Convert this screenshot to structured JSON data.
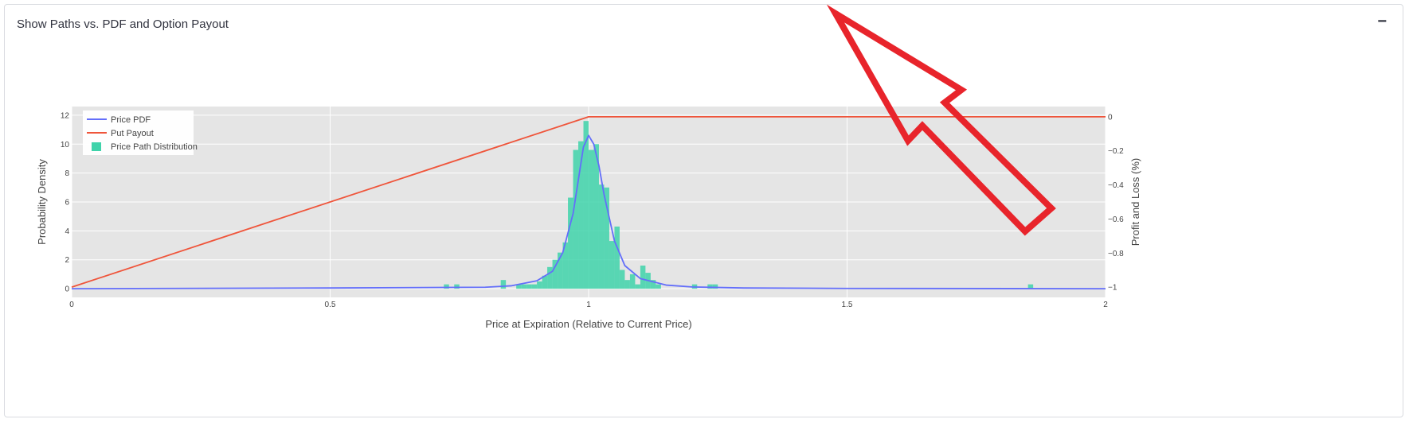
{
  "expander": {
    "title": "Show Paths vs. PDF and Option Payout",
    "collapse_icon": "−"
  },
  "colors": {
    "pdf": "#636efa",
    "payout": "#ef553b",
    "hist": "#3fd3aa",
    "plot_bg": "#e5e5e5",
    "annotation_arrow": "#e8242b"
  },
  "annotation": {
    "type": "arrow",
    "points_to": "top-right",
    "icon": "arrow-outline-icon"
  },
  "chart_data": {
    "type": "histogram+line",
    "xlabel": "Price at Expiration (Relative to Current Price)",
    "ylabel": "Probability Density",
    "y2label": "Profit and Loss (%)",
    "xlim": [
      0,
      2
    ],
    "ylim": [
      -0.6,
      12.6
    ],
    "y2lim": [
      -1.06,
      0.06
    ],
    "x_ticks": [
      "0",
      "0.5",
      "1",
      "1.5",
      "2"
    ],
    "y_ticks": [
      "0",
      "2",
      "4",
      "6",
      "8",
      "10",
      "12"
    ],
    "y2_ticks": [
      "0",
      "−0.2",
      "−0.4",
      "−0.6",
      "−0.8",
      "−1"
    ],
    "grid": true,
    "legend_position": "top-left",
    "legend": [
      "Price PDF",
      "Put Payout",
      "Price Path Distribution"
    ],
    "series": [
      {
        "name": "Price PDF",
        "type": "line",
        "axis": "y",
        "x": [
          0,
          0.5,
          0.8,
          0.85,
          0.9,
          0.93,
          0.95,
          0.97,
          0.98,
          0.99,
          1.0,
          1.01,
          1.02,
          1.03,
          1.05,
          1.07,
          1.1,
          1.15,
          1.2,
          1.3,
          1.5,
          2.0
        ],
        "y": [
          0,
          0.05,
          0.1,
          0.2,
          0.55,
          1.2,
          2.5,
          5.2,
          7.5,
          9.8,
          10.6,
          10.0,
          8.5,
          6.5,
          3.3,
          1.6,
          0.7,
          0.25,
          0.12,
          0.05,
          0.02,
          0
        ]
      },
      {
        "name": "Put Payout",
        "type": "line",
        "axis": "y2",
        "x": [
          0,
          1,
          2
        ],
        "y": [
          -1,
          0,
          0
        ]
      },
      {
        "name": "Price Path Distribution",
        "type": "bar",
        "axis": "y",
        "bin_width": 0.01,
        "x": [
          0.725,
          0.745,
          0.835,
          0.865,
          0.875,
          0.885,
          0.895,
          0.905,
          0.915,
          0.925,
          0.935,
          0.945,
          0.955,
          0.965,
          0.975,
          0.985,
          0.995,
          1.005,
          1.015,
          1.025,
          1.035,
          1.045,
          1.055,
          1.065,
          1.075,
          1.085,
          1.095,
          1.105,
          1.115,
          1.125,
          1.135,
          1.205,
          1.235,
          1.245,
          1.855
        ],
        "y": [
          0.3,
          0.3,
          0.6,
          0.3,
          0.3,
          0.3,
          0.3,
          0.5,
          0.9,
          1.5,
          2.0,
          2.5,
          3.2,
          6.3,
          9.6,
          10.2,
          11.6,
          9.6,
          10.0,
          7.2,
          7.0,
          3.3,
          4.3,
          1.3,
          0.6,
          1.0,
          0.3,
          1.6,
          1.1,
          0.6,
          0.3,
          0.3,
          0.3,
          0.3,
          0.3
        ]
      }
    ]
  }
}
